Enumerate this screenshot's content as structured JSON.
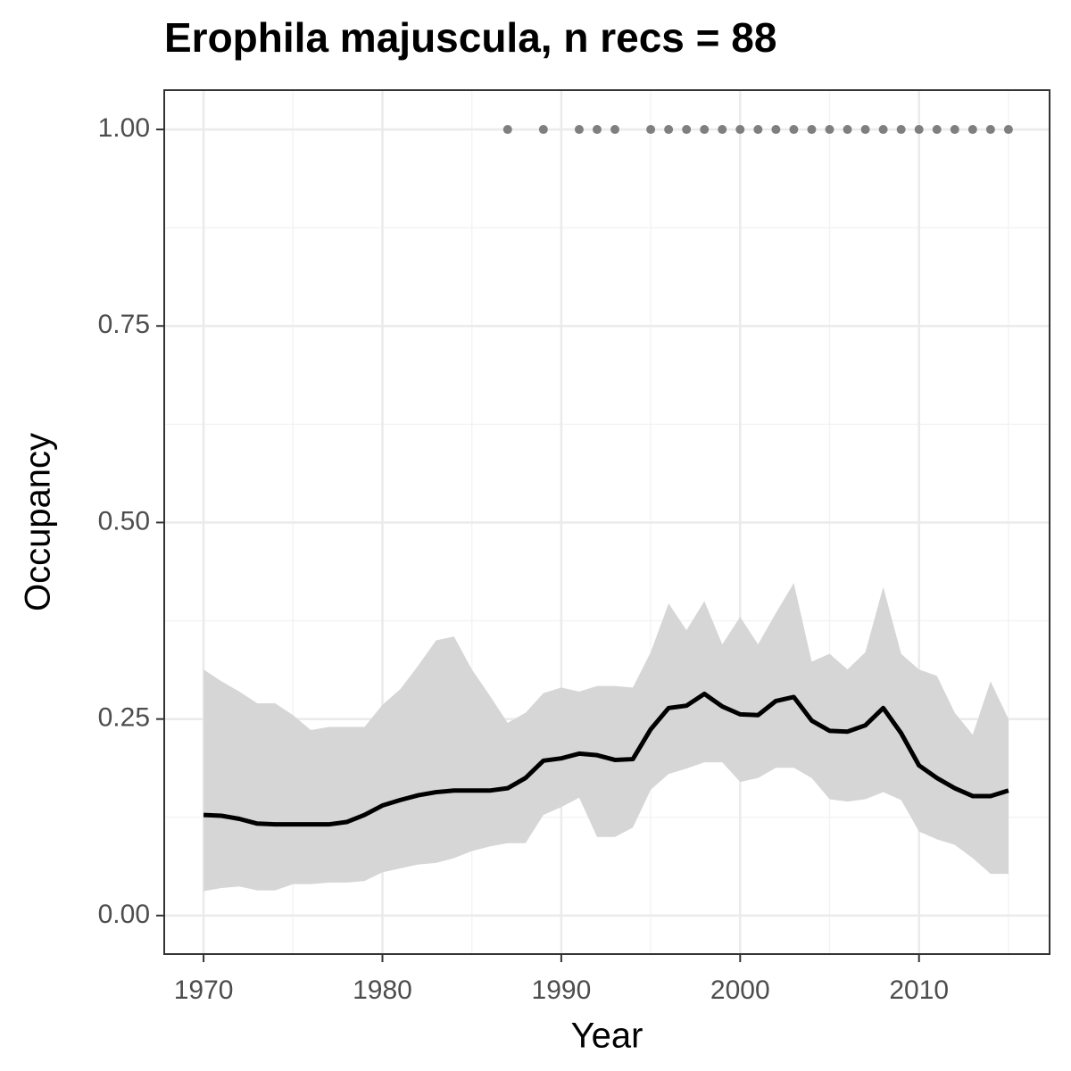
{
  "chart_data": {
    "type": "line",
    "title": "Erophila majuscula, n recs = 88",
    "xlabel": "Year",
    "ylabel": "Occupancy",
    "x": [
      1970,
      1971,
      1972,
      1973,
      1974,
      1975,
      1976,
      1977,
      1978,
      1979,
      1980,
      1981,
      1982,
      1983,
      1984,
      1985,
      1986,
      1987,
      1988,
      1989,
      1990,
      1991,
      1992,
      1993,
      1994,
      1995,
      1996,
      1997,
      1998,
      1999,
      2000,
      2001,
      2002,
      2003,
      2004,
      2005,
      2006,
      2007,
      2008,
      2009,
      2010,
      2011,
      2012,
      2013,
      2014,
      2015
    ],
    "values": [
      0.128,
      0.127,
      0.123,
      0.117,
      0.116,
      0.116,
      0.116,
      0.116,
      0.119,
      0.128,
      0.14,
      0.147,
      0.153,
      0.157,
      0.159,
      0.159,
      0.159,
      0.162,
      0.175,
      0.197,
      0.2,
      0.206,
      0.204,
      0.198,
      0.199,
      0.237,
      0.264,
      0.267,
      0.282,
      0.266,
      0.256,
      0.255,
      0.273,
      0.278,
      0.248,
      0.235,
      0.234,
      0.242,
      0.264,
      0.232,
      0.191,
      0.175,
      0.162,
      0.152,
      0.152,
      0.159
    ],
    "upper": [
      0.313,
      0.298,
      0.285,
      0.27,
      0.27,
      0.255,
      0.236,
      0.24,
      0.24,
      0.24,
      0.268,
      0.288,
      0.318,
      0.35,
      0.355,
      0.313,
      0.28,
      0.245,
      0.258,
      0.283,
      0.29,
      0.285,
      0.292,
      0.292,
      0.29,
      0.335,
      0.397,
      0.363,
      0.4,
      0.345,
      0.38,
      0.345,
      0.385,
      0.423,
      0.323,
      0.333,
      0.313,
      0.335,
      0.418,
      0.333,
      0.313,
      0.305,
      0.258,
      0.23,
      0.298,
      0.25
    ],
    "lower": [
      0.031,
      0.035,
      0.037,
      0.032,
      0.032,
      0.04,
      0.04,
      0.042,
      0.042,
      0.044,
      0.055,
      0.06,
      0.065,
      0.067,
      0.073,
      0.082,
      0.088,
      0.092,
      0.092,
      0.128,
      0.138,
      0.15,
      0.1,
      0.1,
      0.112,
      0.16,
      0.18,
      0.187,
      0.195,
      0.195,
      0.17,
      0.175,
      0.188,
      0.188,
      0.175,
      0.148,
      0.145,
      0.148,
      0.157,
      0.147,
      0.107,
      0.097,
      0.09,
      0.073,
      0.053,
      0.053
    ],
    "points": {
      "x": [
        1987,
        1989,
        1991,
        1992,
        1993,
        1995,
        1996,
        1997,
        1998,
        1999,
        2000,
        2001,
        2002,
        2003,
        2004,
        2005,
        2006,
        2007,
        2008,
        2009,
        2010,
        2011,
        2012,
        2013,
        2014,
        2015
      ],
      "values": [
        1,
        1,
        1,
        1,
        1,
        1,
        1,
        1,
        1,
        1,
        1,
        1,
        1,
        1,
        1,
        1,
        1,
        1,
        1,
        1,
        1,
        1,
        1,
        1,
        1,
        1
      ],
      "color": "#7f7f7f"
    },
    "color": "#000000",
    "band_color": "#d6d6d6",
    "xlim": [
      1967.8,
      2017.3
    ],
    "ylim": [
      -0.049,
      1.05
    ],
    "xticks": [
      1970,
      1980,
      1990,
      2000,
      2010
    ],
    "yticks": [
      {
        "value": 0,
        "label": "0.00"
      },
      {
        "value": 0.25,
        "label": "0.25"
      },
      {
        "value": 0.5,
        "label": "0.50"
      },
      {
        "value": 0.75,
        "label": "0.75"
      },
      {
        "value": 1,
        "label": "1.00"
      }
    ],
    "grid": true
  }
}
